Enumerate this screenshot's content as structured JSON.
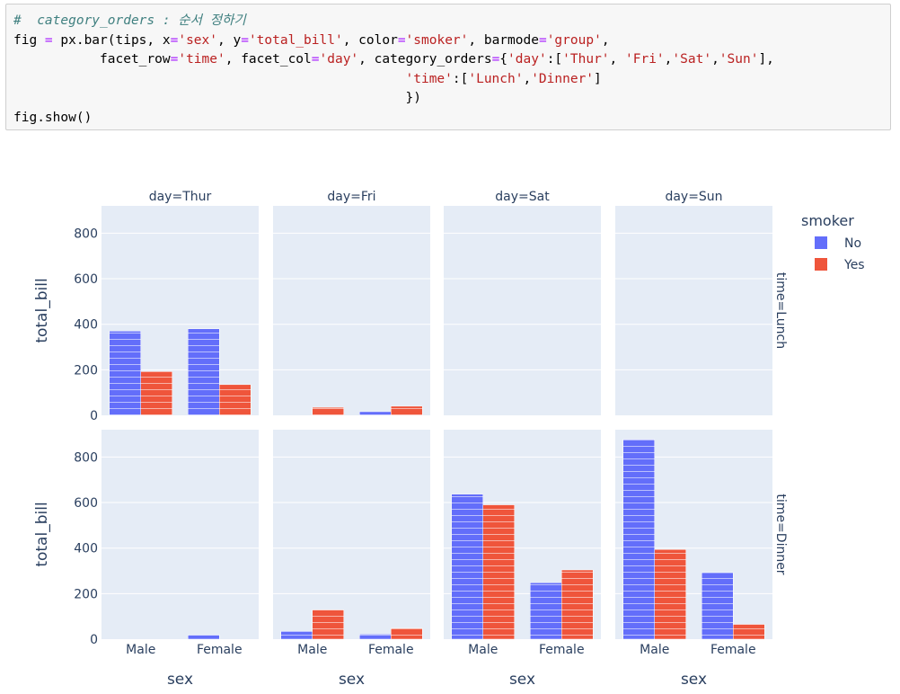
{
  "code": {
    "comment": "#  category_orders : 순서 정하기",
    "lines": [
      [
        [
          "t",
          "fig "
        ],
        [
          "o",
          "="
        ],
        [
          "t",
          " px.bar(tips, x"
        ],
        [
          "o",
          "="
        ],
        [
          "s",
          "'sex'"
        ],
        [
          "t",
          ", y"
        ],
        [
          "o",
          "="
        ],
        [
          "s",
          "'total_bill'"
        ],
        [
          "t",
          ", color"
        ],
        [
          "o",
          "="
        ],
        [
          "s",
          "'smoker'"
        ],
        [
          "t",
          ", barmode"
        ],
        [
          "o",
          "="
        ],
        [
          "s",
          "'group'"
        ],
        [
          "t",
          ","
        ]
      ],
      [
        [
          "t",
          "           facet_row"
        ],
        [
          "o",
          "="
        ],
        [
          "s",
          "'time'"
        ],
        [
          "t",
          ", facet_col"
        ],
        [
          "o",
          "="
        ],
        [
          "s",
          "'day'"
        ],
        [
          "t",
          ", category_orders"
        ],
        [
          "o",
          "="
        ],
        [
          "t",
          "{"
        ],
        [
          "s",
          "'day'"
        ],
        [
          "t",
          ":["
        ],
        [
          "s",
          "'Thur'"
        ],
        [
          "t",
          ", "
        ],
        [
          "s",
          "'Fri'"
        ],
        [
          "t",
          ","
        ],
        [
          "s",
          "'Sat'"
        ],
        [
          "t",
          ","
        ],
        [
          "s",
          "'Sun'"
        ],
        [
          "t",
          "],"
        ]
      ],
      [
        [
          "t",
          "                                                  "
        ],
        [
          "s",
          "'time'"
        ],
        [
          "t",
          ":["
        ],
        [
          "s",
          "'Lunch'"
        ],
        [
          "t",
          ","
        ],
        [
          "s",
          "'Dinner'"
        ],
        [
          "t",
          "]"
        ]
      ],
      [
        [
          "t",
          "                                                  })"
        ]
      ],
      [
        [
          "t",
          "fig.show()"
        ]
      ]
    ]
  },
  "chart_data": {
    "type": "bar",
    "barmode": "group",
    "x_field": "sex",
    "y_field": "total_bill",
    "color_field": "smoker",
    "categories": [
      "Male",
      "Female"
    ],
    "columns": [
      "day=Thur",
      "day=Fri",
      "day=Sat",
      "day=Sun"
    ],
    "rows": [
      "time=Lunch",
      "time=Dinner"
    ],
    "xlabel": "sex",
    "ylabel": "total_bill",
    "ylim": [
      0,
      920
    ],
    "yticks": [
      0,
      200,
      400,
      600,
      800
    ],
    "legend": {
      "title": "smoker",
      "position": "top-right",
      "entries": [
        {
          "name": "No",
          "color": "#636efa"
        },
        {
          "name": "Yes",
          "color": "#ef553b"
        }
      ]
    },
    "series": [
      {
        "name": "No",
        "color": "#636efa",
        "values": [
          [
            [
              370,
              380
            ],
            [
              0,
              16
            ],
            null,
            null
          ],
          [
            [
              0,
              19
            ],
            [
              34,
              22
            ],
            [
              637,
              248
            ],
            [
              878,
              292
            ]
          ]
        ]
      },
      {
        "name": "Yes",
        "color": "#ef553b",
        "values": [
          [
            [
              192,
              135
            ],
            [
              35,
              40
            ],
            null,
            null
          ],
          [
            [
              0,
              0
            ],
            [
              129,
              48
            ],
            [
              590,
              304
            ],
            [
              394,
              65
            ]
          ]
        ]
      }
    ]
  }
}
